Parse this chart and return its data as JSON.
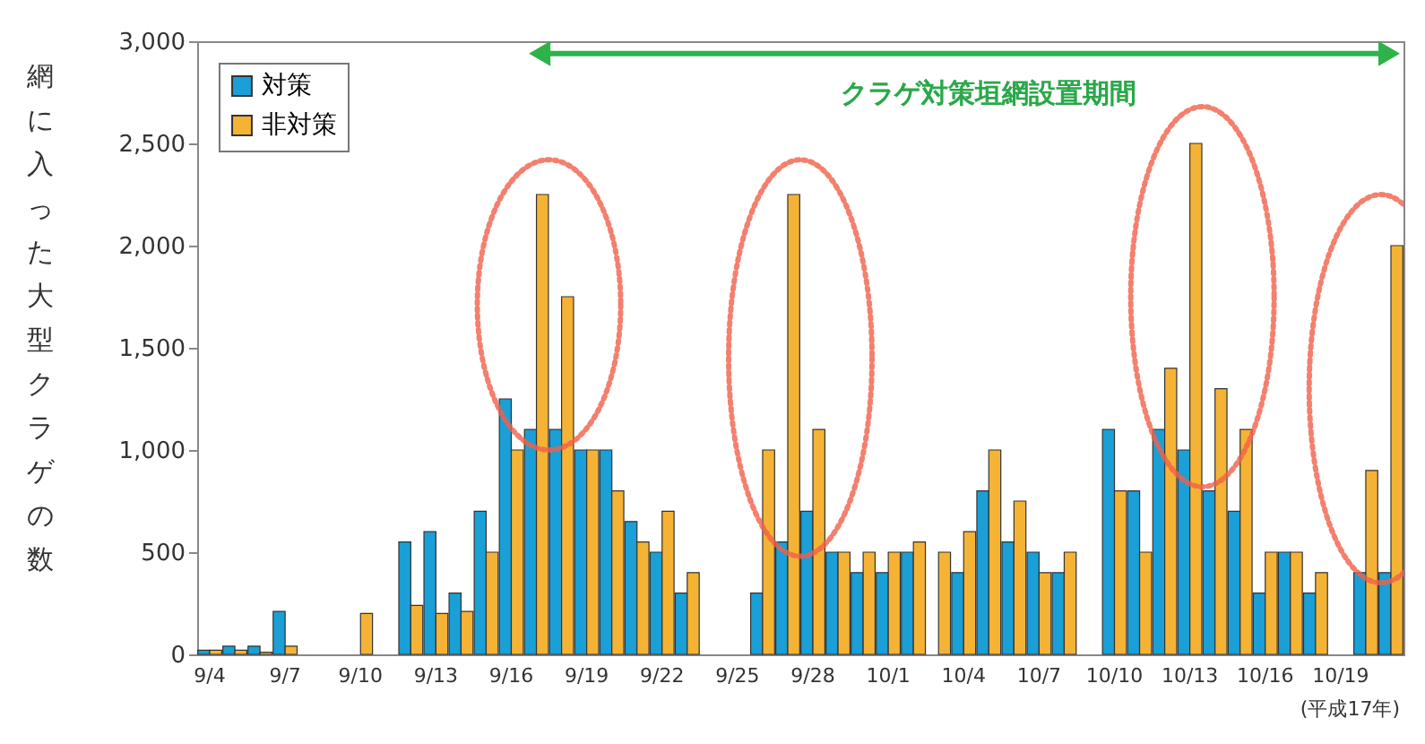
{
  "chart_data": {
    "type": "bar",
    "ylabel": "網に入った大型クラゲの数",
    "categories": [
      "9/4",
      null,
      null,
      "9/7",
      null,
      null,
      "9/10",
      null,
      null,
      "9/13",
      null,
      null,
      "9/16",
      null,
      null,
      "9/19",
      null,
      null,
      "9/22",
      null,
      null,
      "9/25",
      null,
      null,
      "9/28",
      null,
      null,
      "10/1",
      null,
      null,
      "10/4",
      null,
      null,
      "10/7",
      null,
      null,
      "10/10",
      null,
      null,
      "10/13",
      null,
      null,
      "10/16",
      null,
      null,
      "10/19",
      null,
      null
    ],
    "series": [
      {
        "name": "対策",
        "color": "#1a9fd6",
        "values": [
          20,
          40,
          40,
          210,
          null,
          null,
          null,
          null,
          550,
          600,
          300,
          700,
          1250,
          1100,
          1100,
          1000,
          1000,
          650,
          500,
          300,
          null,
          null,
          300,
          550,
          700,
          500,
          400,
          400,
          500,
          null,
          400,
          800,
          550,
          500,
          400,
          null,
          1100,
          800,
          1100,
          1000,
          800,
          700,
          300,
          500,
          300,
          null,
          400,
          400
        ]
      },
      {
        "name": "非対策",
        "color": "#f5b335",
        "values": [
          20,
          20,
          10,
          40,
          null,
          null,
          200,
          null,
          240,
          200,
          210,
          500,
          1000,
          2250,
          1750,
          1000,
          800,
          550,
          700,
          400,
          null,
          null,
          1000,
          2250,
          1100,
          500,
          500,
          500,
          550,
          500,
          600,
          1000,
          750,
          400,
          500,
          null,
          800,
          500,
          1400,
          2500,
          1300,
          1100,
          500,
          500,
          400,
          null,
          900,
          2000
        ]
      }
    ],
    "ylim": [
      0,
      3000
    ],
    "yticks": [
      0,
      500,
      {
        "value": 1000,
        "label": "1,000"
      },
      {
        "value": 1500,
        "label": "1,500"
      },
      {
        "value": 2000,
        "label": "2,000"
      },
      {
        "value": 2500,
        "label": "2,500"
      },
      {
        "value": 3000,
        "label": "3,000"
      }
    ],
    "grid": false,
    "legend": "top left",
    "annotations": [
      "クラゲ対策垣網設置期間",
      "(平成17年)"
    ]
  }
}
